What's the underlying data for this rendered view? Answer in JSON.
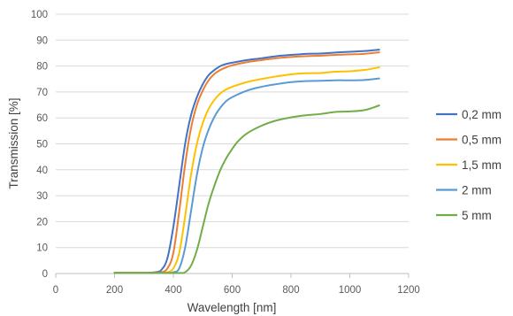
{
  "chart_data": {
    "type": "line",
    "xlabel": "Wavelength [nm]",
    "ylabel": "Transmission [%]",
    "xlim": [
      0,
      1200
    ],
    "ylim": [
      0,
      100
    ],
    "xticks": [
      "0",
      "200",
      "400",
      "600",
      "800",
      "1000",
      "1200"
    ],
    "yticks": [
      "0",
      "10",
      "20",
      "30",
      "40",
      "50",
      "60",
      "70",
      "80",
      "90",
      "100"
    ],
    "grid": "horizontal",
    "legend_position": "right",
    "series": [
      {
        "name": "0,2 mm",
        "color": "#4472C4",
        "x": [
          200,
          300,
          340,
          360,
          380,
          400,
          420,
          440,
          460,
          480,
          500,
          520,
          540,
          560,
          580,
          600,
          650,
          700,
          750,
          800,
          850,
          900,
          950,
          1000,
          1050,
          1100
        ],
        "y": [
          0.3,
          0.3,
          0.5,
          1.5,
          6,
          18,
          34,
          50,
          61,
          68,
          73,
          76.5,
          78.5,
          80,
          80.8,
          81.3,
          82.3,
          83,
          83.8,
          84.3,
          84.7,
          84.8,
          85.2,
          85.5,
          85.8,
          86.3
        ]
      },
      {
        "name": "0,5 mm",
        "color": "#ED7D31",
        "x": [
          200,
          300,
          340,
          360,
          380,
          400,
          420,
          440,
          460,
          480,
          500,
          520,
          540,
          560,
          580,
          600,
          650,
          700,
          750,
          800,
          850,
          900,
          950,
          1000,
          1050,
          1100
        ],
        "y": [
          0.3,
          0.3,
          0.3,
          0.5,
          2,
          8,
          24,
          42,
          56,
          65,
          70.5,
          74.5,
          77,
          78.5,
          79.5,
          80.3,
          81.5,
          82.3,
          83,
          83.5,
          83.8,
          84,
          84.3,
          84.5,
          84.7,
          85.3
        ]
      },
      {
        "name": "1,5 mm",
        "color": "#FFC000",
        "x": [
          200,
          300,
          360,
          380,
          400,
          420,
          440,
          460,
          480,
          500,
          520,
          540,
          560,
          580,
          600,
          650,
          700,
          750,
          800,
          850,
          900,
          950,
          1000,
          1050,
          1100
        ],
        "y": [
          0.2,
          0.2,
          0.2,
          0.5,
          2,
          8,
          22,
          38,
          50,
          58,
          63.5,
          67,
          69.5,
          71,
          72,
          73.8,
          75,
          76,
          76.8,
          77.2,
          77.3,
          77.8,
          78,
          78.5,
          79.5
        ]
      },
      {
        "name": "2 mm",
        "color": "#5B9BD5",
        "x": [
          200,
          300,
          380,
          400,
          420,
          440,
          460,
          480,
          500,
          520,
          540,
          560,
          580,
          600,
          650,
          700,
          750,
          800,
          850,
          900,
          950,
          1000,
          1050,
          1100
        ],
        "y": [
          0.2,
          0.2,
          0.2,
          0.5,
          2,
          10,
          24,
          38,
          48.5,
          55.5,
          60.5,
          64,
          66.5,
          68,
          70.5,
          72,
          73,
          73.8,
          74.2,
          74.3,
          74.5,
          74.5,
          74.6,
          75.2
        ]
      },
      {
        "name": "5 mm",
        "color": "#70AD47",
        "x": [
          200,
          300,
          400,
          420,
          440,
          460,
          480,
          500,
          520,
          540,
          560,
          580,
          600,
          620,
          650,
          700,
          750,
          800,
          850,
          900,
          950,
          1000,
          1050,
          1100
        ],
        "y": [
          0.2,
          0.2,
          0.2,
          0.2,
          0.5,
          3,
          9,
          18,
          27,
          34,
          40,
          44.5,
          48,
          51,
          54,
          57,
          59,
          60.2,
          61,
          61.5,
          62.3,
          62.5,
          63,
          64.8
        ]
      }
    ]
  }
}
